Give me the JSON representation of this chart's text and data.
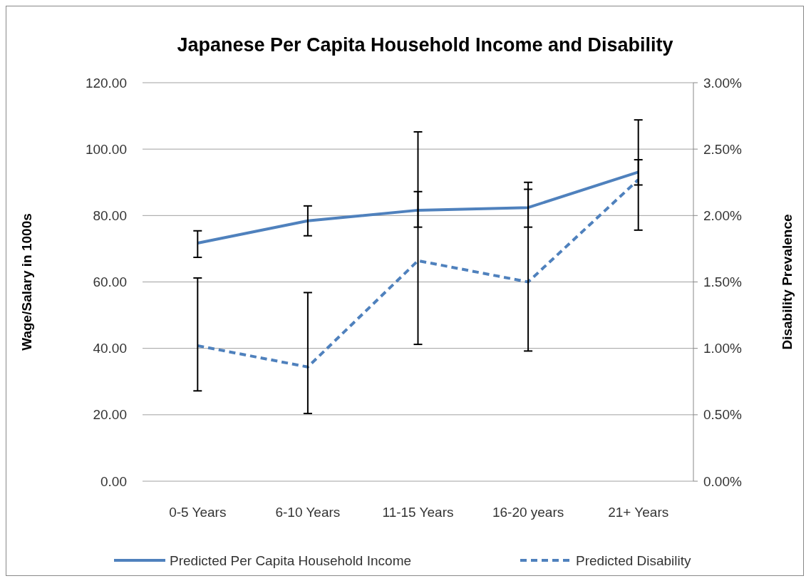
{
  "chart_data": {
    "type": "line",
    "title": "Japanese Per Capita Household Income and Disability",
    "categories": [
      "0-5 Years",
      "6-10 Years",
      "11-15 Years",
      "16-20 years",
      "21+ Years"
    ],
    "series": [
      {
        "name": "Predicted Per Capita Household Income",
        "color": "#4f81bd",
        "values": [
          71.7,
          78.4,
          81.6,
          82.4,
          93.1
        ],
        "errors": [
          [
            67.4,
            75.4
          ],
          [
            73.9,
            82.9
          ],
          [
            76.5,
            87.2
          ],
          [
            76.5,
            87.9
          ],
          [
            89.2,
            96.8
          ]
        ],
        "line_style": "solid"
      },
      {
        "name": "Predicted Disability",
        "color": "#4f81bd",
        "axis": "y2",
        "values": [
          1.02,
          0.86,
          1.66,
          1.5,
          2.27
        ],
        "errors": [
          [
            0.68,
            1.53
          ],
          [
            0.51,
            1.42
          ],
          [
            1.03,
            2.63
          ],
          [
            0.98,
            2.25
          ],
          [
            1.89,
            2.72
          ]
        ],
        "line_style": "dashed"
      }
    ],
    "ylabel": "Wage/Salary in 1000s",
    "y2label": "Disability Prevalence",
    "ylim": [
      0,
      120
    ],
    "yticks": [
      {
        "value": 0,
        "label": "0.00"
      },
      {
        "value": 20,
        "label": "20.00"
      },
      {
        "value": 40,
        "label": "40.00"
      },
      {
        "value": 60,
        "label": "60.00"
      },
      {
        "value": 80,
        "label": "80.00"
      },
      {
        "value": 100,
        "label": "100.00"
      },
      {
        "value": 120,
        "label": "120.00"
      }
    ],
    "y2lim": [
      0,
      3
    ],
    "y2ticks": [
      {
        "value": 0,
        "label": "0.00%"
      },
      {
        "value": 0.5,
        "label": "0.50%"
      },
      {
        "value": 1,
        "label": "1.00%"
      },
      {
        "value": 1.5,
        "label": "1.50%"
      },
      {
        "value": 2,
        "label": "2.00%"
      },
      {
        "value": 2.5,
        "label": "2.50%"
      },
      {
        "value": 3,
        "label": "3.00%"
      }
    ],
    "grid": "y",
    "legend": "bottom"
  }
}
